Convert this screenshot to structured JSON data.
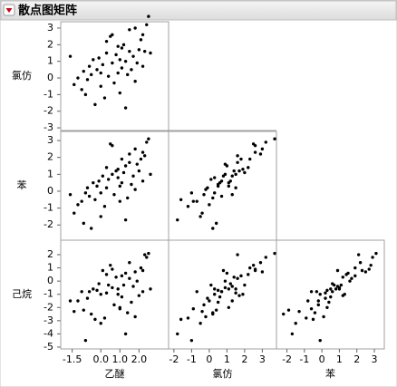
{
  "chart_data": {
    "type": "scatter_matrix",
    "title": "散点图矩阵",
    "color": "#000000",
    "variables": [
      {
        "name": "乙醚",
        "values": [
          -1.6,
          -1.4,
          -1.2,
          -1.0,
          -0.9,
          -0.8,
          -0.6,
          -0.5,
          -0.4,
          -0.3,
          -0.2,
          -0.1,
          0.0,
          0.1,
          0.2,
          0.3,
          0.4,
          0.5,
          0.6,
          0.6,
          0.7,
          0.8,
          0.9,
          0.9,
          1.0,
          1.1,
          1.1,
          1.2,
          1.3,
          1.3,
          1.4,
          1.5,
          1.5,
          1.6,
          1.7,
          1.8,
          1.8,
          1.9,
          2.0,
          2.1,
          2.2,
          2.3,
          2.4,
          2.5,
          2.6,
          0.0,
          -0.7,
          0.3,
          1.0,
          2.2
        ],
        "xlim": [
          -2.1,
          3.55
        ],
        "xticks": [
          -1.5,
          {
            "value": 0,
            "label": "0.0"
          },
          {
            "value": 1,
            "label": "1.0"
          },
          {
            "value": 2,
            "label": "2.0"
          }
        ]
      },
      {
        "name": "氯仿",
        "values": [
          1.3,
          -0.4,
          0.0,
          -0.7,
          0.4,
          -1.0,
          0.7,
          0.2,
          1.1,
          -1.6,
          0.5,
          1.2,
          -0.5,
          0.8,
          -1.2,
          1.5,
          0.1,
          2.5,
          0.9,
          2.6,
          -0.3,
          1.4,
          0.3,
          1.9,
          -0.9,
          0.6,
          1.8,
          2.0,
          -1.8,
          1.0,
          0.2,
          1.6,
          2.9,
          0.5,
          1.3,
          3.0,
          -0.2,
          0.9,
          1.7,
          2.3,
          0.7,
          1.6,
          3.2,
          3.7,
          1.5,
          0.3,
          -0.1,
          2.2,
          1.1,
          2.6
        ],
        "xlim": [
          -2.3,
          3.8
        ],
        "xticks": [
          -2,
          -1,
          0,
          1,
          2,
          3
        ],
        "ylim": [
          -3.16,
          3.38
        ],
        "yticks": [
          3,
          2,
          1,
          0,
          -1,
          -2,
          -3
        ]
      },
      {
        "name": "苯",
        "values": [
          -0.2,
          -1.3,
          -0.8,
          -0.6,
          -1.9,
          -0.1,
          -0.3,
          -2.2,
          0.5,
          -0.5,
          0.3,
          0.6,
          -1.5,
          0.9,
          -0.9,
          0.2,
          0.7,
          2.8,
          1.0,
          2.7,
          -0.2,
          1.2,
          0.8,
          1.3,
          -0.6,
          0.5,
          1.9,
          1.1,
          -1.7,
          1.5,
          -0.4,
          1.7,
          2.2,
          0.4,
          0.9,
          2.5,
          0.1,
          1.6,
          1.2,
          1.9,
          0.6,
          2.1,
          2.9,
          3.1,
          1.0,
          -0.1,
          0.2,
          1.4,
          0.3,
          2.3
        ],
        "xlim": [
          -2.6,
          3.57
        ],
        "xticks": [
          -2,
          -1,
          0,
          1,
          2,
          3
        ],
        "ylim": [
          -2.9,
          3.54
        ],
        "yticks": [
          3,
          2,
          1,
          0,
          -1,
          -2
        ]
      },
      {
        "name": "己烷",
        "values": [
          -1.5,
          -2.3,
          -1.5,
          -0.8,
          -2.2,
          -4.5,
          -0.8,
          -2.5,
          -0.6,
          -2.9,
          -0.7,
          -0.2,
          -3.2,
          0.8,
          -2.8,
          -0.9,
          -0.3,
          1.2,
          -0.5,
          0.9,
          -1.8,
          0.3,
          -0.6,
          -1.0,
          -2.1,
          -1.2,
          0.4,
          -0.3,
          -4.0,
          0.6,
          -2.4,
          0.2,
          1.4,
          -1.6,
          -0.4,
          0.7,
          -2.7,
          0.0,
          -1.1,
          1.0,
          -0.8,
          2.0,
          1.8,
          2.1,
          -0.6,
          -1.0,
          -1.3,
          0.5,
          -2.0,
          0.8
        ],
        "ylim": [
          -5.14,
          3.1
        ],
        "yticks": [
          2,
          1,
          0,
          -1,
          -2,
          -3,
          -4,
          -5
        ]
      }
    ]
  }
}
